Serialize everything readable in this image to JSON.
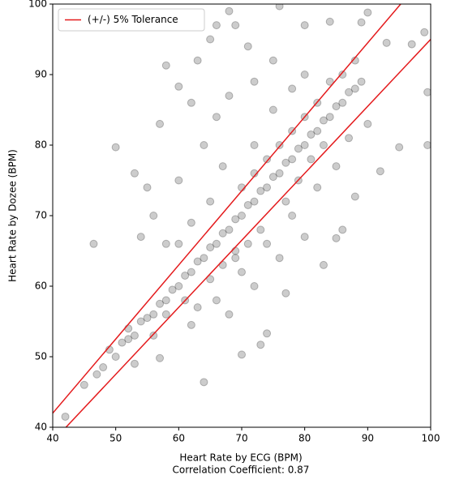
{
  "chart_data": {
    "type": "scatter",
    "xlabel": "Heart Rate by ECG (BPM)",
    "subtitle": "Correlation Coefficient: 0.87",
    "ylabel": "Heart Rate by Dozee (BPM)",
    "xlim": [
      40,
      100
    ],
    "ylim": [
      40,
      100
    ],
    "xticks": [
      40,
      50,
      60,
      70,
      80,
      90,
      100
    ],
    "yticks": [
      40,
      50,
      60,
      70,
      80,
      90,
      100
    ],
    "legend": "upper left",
    "series": [
      {
        "color": "#000000",
        "x": [
          45,
          47,
          48,
          50,
          51,
          52,
          53,
          54,
          55,
          56,
          57,
          58,
          59,
          60,
          61,
          62,
          63,
          64,
          65,
          66,
          67,
          68,
          69,
          70,
          71,
          72,
          73,
          74,
          75,
          76,
          77,
          78,
          79,
          80,
          81,
          82,
          83,
          84,
          85,
          86,
          87,
          88,
          89,
          42,
          46.5,
          50,
          53,
          55,
          57,
          58,
          60,
          62,
          63,
          65,
          66,
          68,
          69,
          71,
          76,
          80,
          84,
          89,
          90,
          93,
          97,
          99,
          99.5,
          99.5,
          95,
          92,
          88,
          85,
          83,
          77,
          74,
          73,
          70,
          64,
          62,
          57,
          53,
          54,
          56,
          60,
          58,
          64,
          66,
          68,
          72,
          75,
          78,
          80,
          74,
          78,
          82,
          85,
          87,
          90,
          76,
          80,
          72,
          68,
          66,
          70,
          72,
          75,
          86,
          65,
          62,
          60,
          67,
          69,
          71,
          73,
          77,
          79,
          81,
          83,
          63,
          61,
          58,
          56,
          52,
          49,
          70,
          72,
          74,
          76,
          65,
          67,
          69,
          78,
          80,
          82,
          84,
          86,
          88
        ],
        "values": [
          46,
          47.5,
          48.5,
          50,
          52,
          52.5,
          53,
          55,
          55.5,
          56,
          57.5,
          58,
          59.5,
          60,
          61.5,
          62,
          63.5,
          64,
          65.5,
          66,
          67.5,
          68,
          69.5,
          70,
          71.5,
          72,
          73.5,
          74,
          75.5,
          76,
          77.5,
          78,
          79.5,
          80,
          81.5,
          82,
          83.5,
          84,
          85.5,
          86,
          87.5,
          88,
          89,
          41.5,
          66,
          79.7,
          76,
          74,
          83,
          91.3,
          88.3,
          86,
          92,
          95,
          97,
          99,
          97,
          94,
          99.7,
          97,
          97.5,
          97.4,
          98.8,
          94.5,
          94.3,
          96,
          87.5,
          80,
          79.7,
          76.3,
          72.7,
          66.8,
          63,
          59,
          53.3,
          51.7,
          50.3,
          46.4,
          54.5,
          49.8,
          49,
          67,
          70,
          75,
          66,
          80,
          84,
          87,
          89,
          85,
          88,
          90,
          66,
          70,
          74,
          77,
          81,
          83,
          64,
          67,
          60,
          56,
          58,
          62,
          80,
          92,
          68,
          72,
          69,
          66,
          77,
          65,
          66,
          68,
          72,
          75,
          78,
          80,
          57,
          58,
          56,
          53,
          54,
          51,
          74,
          76,
          78,
          80,
          61,
          63,
          64,
          82,
          84,
          86,
          89,
          90,
          92
        ]
      }
    ],
    "tolerance": {
      "name": "(+/-) 5% Tolerance",
      "color": "#e41a1c",
      "lines": [
        {
          "x": [
            40,
            100
          ],
          "values": [
            42,
            105
          ]
        },
        {
          "x": [
            40,
            100
          ],
          "values": [
            38,
            95
          ]
        }
      ]
    }
  }
}
